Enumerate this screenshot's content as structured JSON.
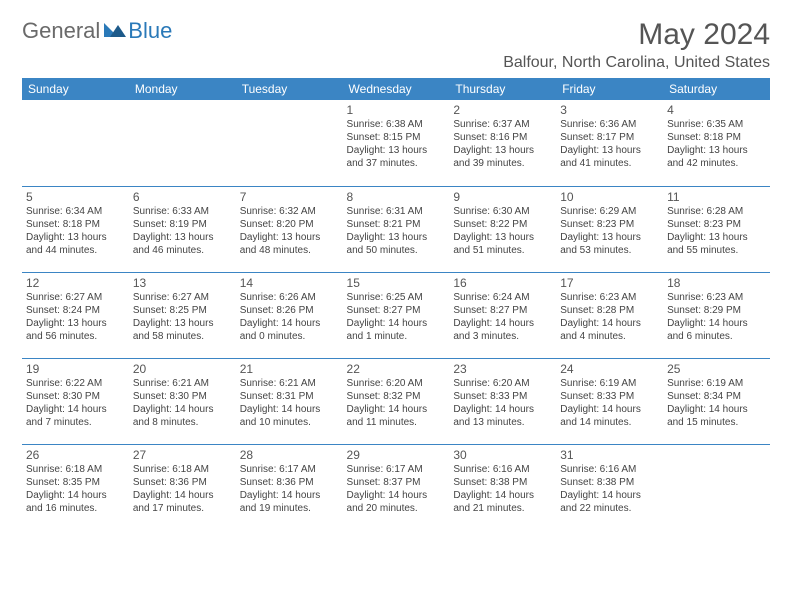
{
  "logo": {
    "general": "General",
    "blue": "Blue"
  },
  "title": "May 2024",
  "location": "Balfour, North Carolina, United States",
  "colors": {
    "header_bg": "#3b85c4",
    "header_text": "#ffffff",
    "border": "#3b85c4",
    "text": "#555555",
    "body_text": "#444444",
    "logo_gray": "#6a6a6a",
    "logo_blue": "#2a79b8"
  },
  "day_headers": [
    "Sunday",
    "Monday",
    "Tuesday",
    "Wednesday",
    "Thursday",
    "Friday",
    "Saturday"
  ],
  "weeks": [
    [
      {
        "n": "",
        "sr": "",
        "ss": "",
        "dl": ""
      },
      {
        "n": "",
        "sr": "",
        "ss": "",
        "dl": ""
      },
      {
        "n": "",
        "sr": "",
        "ss": "",
        "dl": ""
      },
      {
        "n": "1",
        "sr": "Sunrise: 6:38 AM",
        "ss": "Sunset: 8:15 PM",
        "dl": "Daylight: 13 hours and 37 minutes."
      },
      {
        "n": "2",
        "sr": "Sunrise: 6:37 AM",
        "ss": "Sunset: 8:16 PM",
        "dl": "Daylight: 13 hours and 39 minutes."
      },
      {
        "n": "3",
        "sr": "Sunrise: 6:36 AM",
        "ss": "Sunset: 8:17 PM",
        "dl": "Daylight: 13 hours and 41 minutes."
      },
      {
        "n": "4",
        "sr": "Sunrise: 6:35 AM",
        "ss": "Sunset: 8:18 PM",
        "dl": "Daylight: 13 hours and 42 minutes."
      }
    ],
    [
      {
        "n": "5",
        "sr": "Sunrise: 6:34 AM",
        "ss": "Sunset: 8:18 PM",
        "dl": "Daylight: 13 hours and 44 minutes."
      },
      {
        "n": "6",
        "sr": "Sunrise: 6:33 AM",
        "ss": "Sunset: 8:19 PM",
        "dl": "Daylight: 13 hours and 46 minutes."
      },
      {
        "n": "7",
        "sr": "Sunrise: 6:32 AM",
        "ss": "Sunset: 8:20 PM",
        "dl": "Daylight: 13 hours and 48 minutes."
      },
      {
        "n": "8",
        "sr": "Sunrise: 6:31 AM",
        "ss": "Sunset: 8:21 PM",
        "dl": "Daylight: 13 hours and 50 minutes."
      },
      {
        "n": "9",
        "sr": "Sunrise: 6:30 AM",
        "ss": "Sunset: 8:22 PM",
        "dl": "Daylight: 13 hours and 51 minutes."
      },
      {
        "n": "10",
        "sr": "Sunrise: 6:29 AM",
        "ss": "Sunset: 8:23 PM",
        "dl": "Daylight: 13 hours and 53 minutes."
      },
      {
        "n": "11",
        "sr": "Sunrise: 6:28 AM",
        "ss": "Sunset: 8:23 PM",
        "dl": "Daylight: 13 hours and 55 minutes."
      }
    ],
    [
      {
        "n": "12",
        "sr": "Sunrise: 6:27 AM",
        "ss": "Sunset: 8:24 PM",
        "dl": "Daylight: 13 hours and 56 minutes."
      },
      {
        "n": "13",
        "sr": "Sunrise: 6:27 AM",
        "ss": "Sunset: 8:25 PM",
        "dl": "Daylight: 13 hours and 58 minutes."
      },
      {
        "n": "14",
        "sr": "Sunrise: 6:26 AM",
        "ss": "Sunset: 8:26 PM",
        "dl": "Daylight: 14 hours and 0 minutes."
      },
      {
        "n": "15",
        "sr": "Sunrise: 6:25 AM",
        "ss": "Sunset: 8:27 PM",
        "dl": "Daylight: 14 hours and 1 minute."
      },
      {
        "n": "16",
        "sr": "Sunrise: 6:24 AM",
        "ss": "Sunset: 8:27 PM",
        "dl": "Daylight: 14 hours and 3 minutes."
      },
      {
        "n": "17",
        "sr": "Sunrise: 6:23 AM",
        "ss": "Sunset: 8:28 PM",
        "dl": "Daylight: 14 hours and 4 minutes."
      },
      {
        "n": "18",
        "sr": "Sunrise: 6:23 AM",
        "ss": "Sunset: 8:29 PM",
        "dl": "Daylight: 14 hours and 6 minutes."
      }
    ],
    [
      {
        "n": "19",
        "sr": "Sunrise: 6:22 AM",
        "ss": "Sunset: 8:30 PM",
        "dl": "Daylight: 14 hours and 7 minutes."
      },
      {
        "n": "20",
        "sr": "Sunrise: 6:21 AM",
        "ss": "Sunset: 8:30 PM",
        "dl": "Daylight: 14 hours and 8 minutes."
      },
      {
        "n": "21",
        "sr": "Sunrise: 6:21 AM",
        "ss": "Sunset: 8:31 PM",
        "dl": "Daylight: 14 hours and 10 minutes."
      },
      {
        "n": "22",
        "sr": "Sunrise: 6:20 AM",
        "ss": "Sunset: 8:32 PM",
        "dl": "Daylight: 14 hours and 11 minutes."
      },
      {
        "n": "23",
        "sr": "Sunrise: 6:20 AM",
        "ss": "Sunset: 8:33 PM",
        "dl": "Daylight: 14 hours and 13 minutes."
      },
      {
        "n": "24",
        "sr": "Sunrise: 6:19 AM",
        "ss": "Sunset: 8:33 PM",
        "dl": "Daylight: 14 hours and 14 minutes."
      },
      {
        "n": "25",
        "sr": "Sunrise: 6:19 AM",
        "ss": "Sunset: 8:34 PM",
        "dl": "Daylight: 14 hours and 15 minutes."
      }
    ],
    [
      {
        "n": "26",
        "sr": "Sunrise: 6:18 AM",
        "ss": "Sunset: 8:35 PM",
        "dl": "Daylight: 14 hours and 16 minutes."
      },
      {
        "n": "27",
        "sr": "Sunrise: 6:18 AM",
        "ss": "Sunset: 8:36 PM",
        "dl": "Daylight: 14 hours and 17 minutes."
      },
      {
        "n": "28",
        "sr": "Sunrise: 6:17 AM",
        "ss": "Sunset: 8:36 PM",
        "dl": "Daylight: 14 hours and 19 minutes."
      },
      {
        "n": "29",
        "sr": "Sunrise: 6:17 AM",
        "ss": "Sunset: 8:37 PM",
        "dl": "Daylight: 14 hours and 20 minutes."
      },
      {
        "n": "30",
        "sr": "Sunrise: 6:16 AM",
        "ss": "Sunset: 8:38 PM",
        "dl": "Daylight: 14 hours and 21 minutes."
      },
      {
        "n": "31",
        "sr": "Sunrise: 6:16 AM",
        "ss": "Sunset: 8:38 PM",
        "dl": "Daylight: 14 hours and 22 minutes."
      },
      {
        "n": "",
        "sr": "",
        "ss": "",
        "dl": ""
      }
    ]
  ]
}
